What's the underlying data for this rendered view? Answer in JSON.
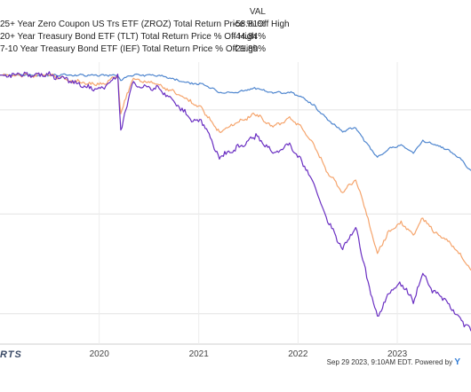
{
  "legend": {
    "header": "VAL",
    "items": [
      {
        "label": "25+ Year Zero Coupon US Trs ETF (ZROZ) Total Return Price % Off High",
        "value": "-58.81%"
      },
      {
        "label": "20+ Year Treasury Bond ETF (TLT) Total Return Price % Off High",
        "value": "-44.84%"
      },
      {
        "label": "7-10 Year Treasury Bond ETF (IEF) Total Return Price % Off High",
        "value": "-21.89%"
      }
    ]
  },
  "footer": {
    "brand": "RTS",
    "stamp": "Sep 29 2023, 9:10AM EDT. Powered by",
    "logo": "Y"
  },
  "chart_data": {
    "type": "line",
    "x_ticks": [
      "2020",
      "2021",
      "2022",
      "2023"
    ],
    "x_range": [
      "2019-01-01",
      "2023-09-29"
    ],
    "y_range": [
      -62,
      3
    ],
    "grid": true,
    "series": [
      {
        "name": "25+ Year Zero Coupon US Trs ETF (ZROZ) Total Return Price % Off High",
        "color": "#6a2fc2",
        "x": [
          "2019-01-01",
          "2019-04-01",
          "2019-07-01",
          "2019-09-01",
          "2019-12-01",
          "2020-01-15",
          "2020-03-09",
          "2020-03-20",
          "2020-05-01",
          "2020-08-04",
          "2020-10-01",
          "2020-12-01",
          "2021-01-15",
          "2021-03-18",
          "2021-05-15",
          "2021-07-30",
          "2021-10-01",
          "2021-12-01",
          "2022-01-15",
          "2022-03-01",
          "2022-04-15",
          "2022-06-14",
          "2022-08-01",
          "2022-09-01",
          "2022-10-20",
          "2022-12-01",
          "2023-01-15",
          "2023-03-01",
          "2023-04-05",
          "2023-05-15",
          "2023-07-01",
          "2023-08-15",
          "2023-09-29"
        ],
        "y": [
          0,
          0,
          0,
          -1,
          -3,
          -3,
          0,
          -13,
          -2,
          -3,
          -6,
          -10,
          -11,
          -19,
          -17,
          -14,
          -18,
          -16,
          -20,
          -25,
          -33,
          -40,
          -35,
          -44,
          -56,
          -50,
          -48,
          -52,
          -46,
          -50,
          -52,
          -56,
          -59
        ]
      },
      {
        "name": "20+ Year Treasury Bond ETF (TLT) Total Return Price % Off High",
        "color": "#f5a46c",
        "x": [
          "2019-01-01",
          "2019-04-01",
          "2019-07-01",
          "2019-09-01",
          "2019-12-01",
          "2020-01-15",
          "2020-03-09",
          "2020-03-20",
          "2020-05-01",
          "2020-08-04",
          "2020-10-01",
          "2020-12-01",
          "2021-01-15",
          "2021-03-18",
          "2021-05-15",
          "2021-07-30",
          "2021-10-01",
          "2021-12-01",
          "2022-01-15",
          "2022-03-01",
          "2022-04-15",
          "2022-06-14",
          "2022-08-01",
          "2022-09-01",
          "2022-10-20",
          "2022-12-01",
          "2023-01-15",
          "2023-03-01",
          "2023-04-05",
          "2023-05-15",
          "2023-07-01",
          "2023-08-15",
          "2023-09-29"
        ],
        "y": [
          0,
          0,
          0,
          -1,
          -2,
          -2,
          0,
          -9,
          -1,
          -2,
          -4,
          -6,
          -8,
          -13,
          -11,
          -9,
          -12,
          -10,
          -12,
          -16,
          -22,
          -27,
          -24,
          -30,
          -41,
          -36,
          -34,
          -37,
          -33,
          -36,
          -38,
          -41,
          -45
        ]
      },
      {
        "name": "7-10 Year Treasury Bond ETF (IEF) Total Return Price % Off High",
        "color": "#4f86cf",
        "x": [
          "2019-01-01",
          "2019-04-01",
          "2019-07-01",
          "2019-09-01",
          "2019-12-01",
          "2020-01-15",
          "2020-03-09",
          "2020-03-20",
          "2020-05-01",
          "2020-08-04",
          "2020-10-01",
          "2020-12-01",
          "2021-01-15",
          "2021-03-18",
          "2021-05-15",
          "2021-07-30",
          "2021-10-01",
          "2021-12-01",
          "2022-01-15",
          "2022-03-01",
          "2022-04-15",
          "2022-06-14",
          "2022-08-01",
          "2022-09-01",
          "2022-10-20",
          "2022-12-01",
          "2023-01-15",
          "2023-03-01",
          "2023-04-05",
          "2023-05-15",
          "2023-07-01",
          "2023-08-15",
          "2023-09-29"
        ],
        "y": [
          0,
          0,
          0,
          0,
          0,
          0,
          0,
          -1,
          0,
          0,
          -1,
          -2,
          -2,
          -4,
          -4,
          -3,
          -4,
          -4,
          -5,
          -7,
          -10,
          -13,
          -12,
          -15,
          -19,
          -17,
          -16,
          -18,
          -15,
          -16,
          -17,
          -19,
          -22
        ]
      }
    ]
  }
}
